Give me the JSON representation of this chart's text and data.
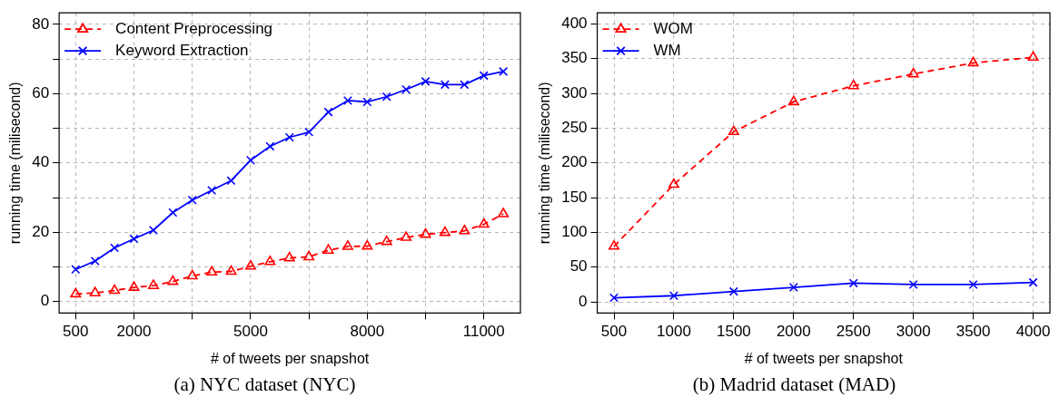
{
  "chart_data": [
    {
      "type": "line",
      "xlabel": "# of tweets per snapshot",
      "ylabel": "running time (milisecond)",
      "annotations": [
        "(a) NYC dataset (NYC)"
      ],
      "x": [
        500,
        1000,
        1500,
        2000,
        2500,
        3000,
        3500,
        4000,
        4500,
        5000,
        5500,
        6000,
        6500,
        7000,
        7500,
        8000,
        8500,
        9000,
        9500,
        10000,
        10500,
        11000,
        11500
      ],
      "xlim": [
        75,
        11940
      ],
      "ylim": [
        -3.3,
        83.3
      ],
      "xticks": [
        500,
        2000,
        {
          "value": 3500,
          "label": null
        },
        5000,
        {
          "value": 6500,
          "label": null
        },
        8000,
        {
          "value": 9500,
          "label": null
        },
        11000
      ],
      "yticks": [
        0,
        {
          "value": 10,
          "label": null
        },
        20,
        {
          "value": 30,
          "label": null
        },
        40,
        {
          "value": 50,
          "label": null
        },
        60,
        {
          "value": 70,
          "label": null
        },
        80
      ],
      "grid": true,
      "legend": "top left",
      "series": [
        {
          "name": "Content Preprocessing",
          "color": "#ff0000",
          "marker": "triangle",
          "line_style": "dashed",
          "values": [
            2.2,
            2.5,
            3.2,
            4.1,
            4.6,
            5.8,
            7.4,
            8.5,
            8.7,
            10.2,
            11.5,
            12.6,
            12.9,
            14.8,
            15.9,
            16.0,
            17.3,
            18.5,
            19.4,
            19.9,
            20.4,
            22.3,
            25.3
          ]
        },
        {
          "name": "Keyword Extraction",
          "color": "#0000ff",
          "marker": "cross",
          "line_style": "solid",
          "values": [
            9.3,
            11.7,
            15.5,
            18.1,
            20.6,
            25.7,
            29.3,
            32.1,
            34.9,
            40.8,
            44.8,
            47.4,
            48.9,
            54.7,
            58.0,
            57.6,
            59.1,
            61.2,
            63.5,
            62.6,
            62.6,
            65.2,
            66.4
          ]
        }
      ]
    },
    {
      "type": "line",
      "xlabel": "# of tweets per snapshot",
      "ylabel": "running time (milisecond)",
      "annotations": [
        "(b) Madrid dataset (MAD)"
      ],
      "x": [
        500,
        1000,
        1500,
        2000,
        2500,
        3000,
        3500,
        4000
      ],
      "xlim": [
        360,
        4140
      ],
      "ylim": [
        -16,
        416
      ],
      "xticks": [
        500,
        1000,
        1500,
        2000,
        2500,
        3000,
        3500,
        4000
      ],
      "yticks": [
        0,
        50,
        100,
        150,
        200,
        250,
        300,
        350,
        400
      ],
      "grid": true,
      "legend": "top left",
      "series": [
        {
          "name": "WOM",
          "color": "#ff0000",
          "marker": "triangle",
          "line_style": "dashed",
          "values": [
            80,
            169,
            245,
            288,
            311,
            328,
            344,
            352
          ]
        },
        {
          "name": "WM",
          "color": "#0000ff",
          "marker": "cross",
          "line_style": "solid",
          "values": [
            6,
            9,
            15,
            21,
            27,
            25,
            25,
            28
          ]
        }
      ]
    }
  ]
}
